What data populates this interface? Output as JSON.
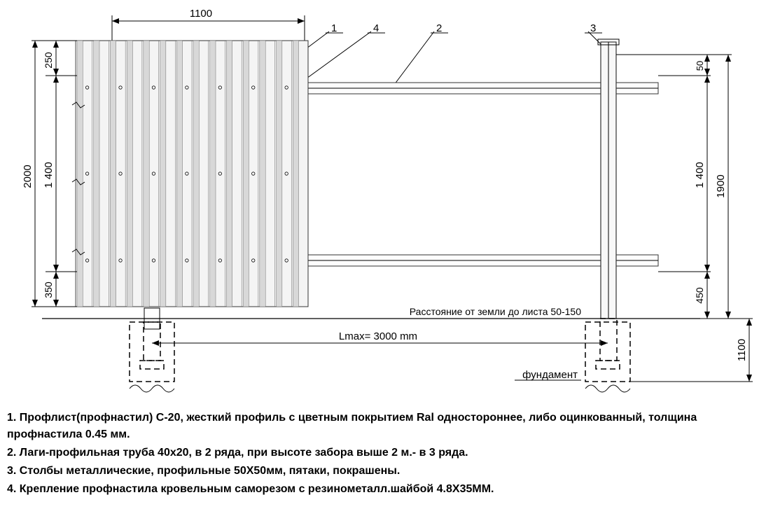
{
  "diagram": {
    "type": "technical-drawing",
    "background_color": "#ffffff",
    "line_color": "#000000",
    "panel_fill": "#f4f4f4",
    "post_fill": "#f8f8f8",
    "rail_fill": "#fdfdfd",
    "dimensions": {
      "panel_width_top": "1100",
      "left_overall_height": "2000",
      "left_top_gap": "250",
      "left_middle": "1 400",
      "left_bottom_gap": "350",
      "right_top_gap": "50",
      "right_middle": "1 400",
      "right_bottom_gap": "450",
      "right_overall": "1900",
      "foundation_depth": "1100",
      "span": "Lmax=  3000  mm"
    },
    "callouts": {
      "c1": "1",
      "c2": "2",
      "c3": "3",
      "c4": "4"
    },
    "notes": {
      "ground_clearance": "Расстояние от земли до листа 50-150",
      "foundation_label": "фундамент"
    },
    "corrugation": {
      "ribs": 14,
      "screw_rows": 3
    },
    "font": {
      "dim_size": 15,
      "legend_size": 16,
      "note_size": 15
    }
  },
  "legend": {
    "item1": "1. Профлист(профнастил) С-20, жесткий профиль с цветным покрытием Ral одностороннее, либо оцинкованный, толщина профнастила 0.45 мм.",
    "item2": "2. Лаги-профильная труба 40х20, в 2 ряда, при высоте забора выше 2 м.- в 3 ряда.",
    "item3": "3. Столбы металлические, профильные 50Х50мм, пятаки, покрашены.",
    "item4": "4. Крепление профнастила кровельным саморезом с резинометалл.шайбой 4.8Х35ММ."
  }
}
